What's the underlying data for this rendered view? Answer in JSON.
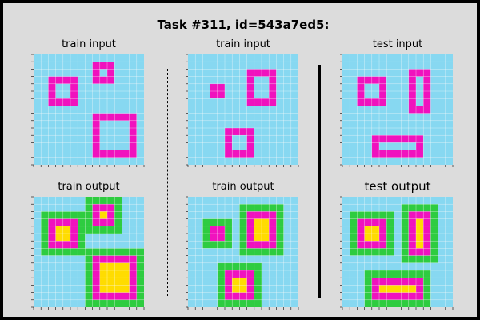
{
  "title": "Task #311, id=543a7ed5:",
  "colors": {
    "background": "#dcdcdc",
    "legend": {
      "0": "#87d8f1",
      "1": "#f012be",
      "2": "#2ecc40",
      "3": "#ffdc00"
    },
    "gridline": "#ffffff",
    "tick": "#000000"
  },
  "panels": [
    {
      "id": "train-input-1",
      "label": "train input",
      "grid": [
        "000000000000000",
        "000000000000000",
        "000000000000000",
        "000000000000000",
        "000000000000000",
        "000000000000000",
        "000000000000000",
        "000000000000000",
        "000000000000000",
        "000000000000000",
        "000000000000000",
        "000000000000000",
        "000000000000000",
        "000000000000000",
        "000000000000000"
      ],
      "shapes": [
        {
          "r0": 1,
          "c0": 8,
          "r1": 3,
          "c1": 10
        },
        {
          "r0": 3,
          "c0": 2,
          "r1": 6,
          "c1": 5
        },
        {
          "r0": 8,
          "c0": 8,
          "r1": 13,
          "c1": 13
        }
      ]
    },
    {
      "id": "train-output-1",
      "label": "train output",
      "shapes": [
        {
          "r0": 1,
          "c0": 8,
          "r1": 3,
          "c1": 10
        },
        {
          "r0": 3,
          "c0": 2,
          "r1": 6,
          "c1": 5
        },
        {
          "r0": 8,
          "c0": 8,
          "r1": 13,
          "c1": 13
        }
      ]
    },
    {
      "id": "train-input-2",
      "label": "train input",
      "shapes": [
        {
          "r0": 2,
          "c0": 8,
          "r1": 6,
          "c1": 11
        },
        {
          "r0": 4,
          "c0": 3,
          "r1": 5,
          "c1": 4
        },
        {
          "r0": 10,
          "c0": 5,
          "r1": 13,
          "c1": 8
        }
      ]
    },
    {
      "id": "train-output-2",
      "label": "train output",
      "shapes": [
        {
          "r0": 2,
          "c0": 8,
          "r1": 6,
          "c1": 11
        },
        {
          "r0": 4,
          "c0": 3,
          "r1": 5,
          "c1": 4
        },
        {
          "r0": 10,
          "c0": 5,
          "r1": 13,
          "c1": 8
        }
      ]
    },
    {
      "id": "test-input",
      "label": "test input",
      "shapes": [
        {
          "r0": 2,
          "c0": 9,
          "r1": 7,
          "c1": 11
        },
        {
          "r0": 3,
          "c0": 2,
          "r1": 6,
          "c1": 5
        },
        {
          "r0": 11,
          "c0": 4,
          "r1": 13,
          "c1": 10
        }
      ]
    },
    {
      "id": "test-output",
      "label": "test output",
      "shapes": [
        {
          "r0": 2,
          "c0": 9,
          "r1": 7,
          "c1": 11
        },
        {
          "r0": 3,
          "c0": 2,
          "r1": 6,
          "c1": 5
        },
        {
          "r0": 11,
          "c0": 4,
          "r1": 13,
          "c1": 10
        }
      ]
    }
  ]
}
